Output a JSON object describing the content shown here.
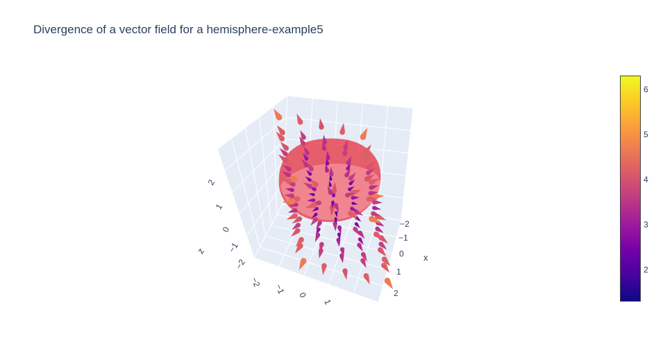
{
  "chart_data": {
    "type": "cone",
    "title": "Divergence of a vector field for a hemisphere-example5",
    "scene": {
      "xaxis": {
        "title": "x",
        "ticks": [
          "−2",
          "−1",
          "0",
          "1",
          "2"
        ]
      },
      "yaxis": {
        "title": "",
        "ticks": [
          "−2",
          "−1",
          "0",
          "1"
        ]
      },
      "zaxis": {
        "title": "z",
        "ticks": [
          "−2",
          "−1",
          "0",
          "1",
          "2"
        ]
      }
    },
    "surface": {
      "name": "hemisphere",
      "color": "#ef4a4a",
      "opacity": 0.75
    },
    "colorscale": "Plasma",
    "colorbar": {
      "cmin": 1.3,
      "cmax": 6.3,
      "ticks": [
        "2",
        "3",
        "4",
        "5",
        "6"
      ]
    }
  }
}
